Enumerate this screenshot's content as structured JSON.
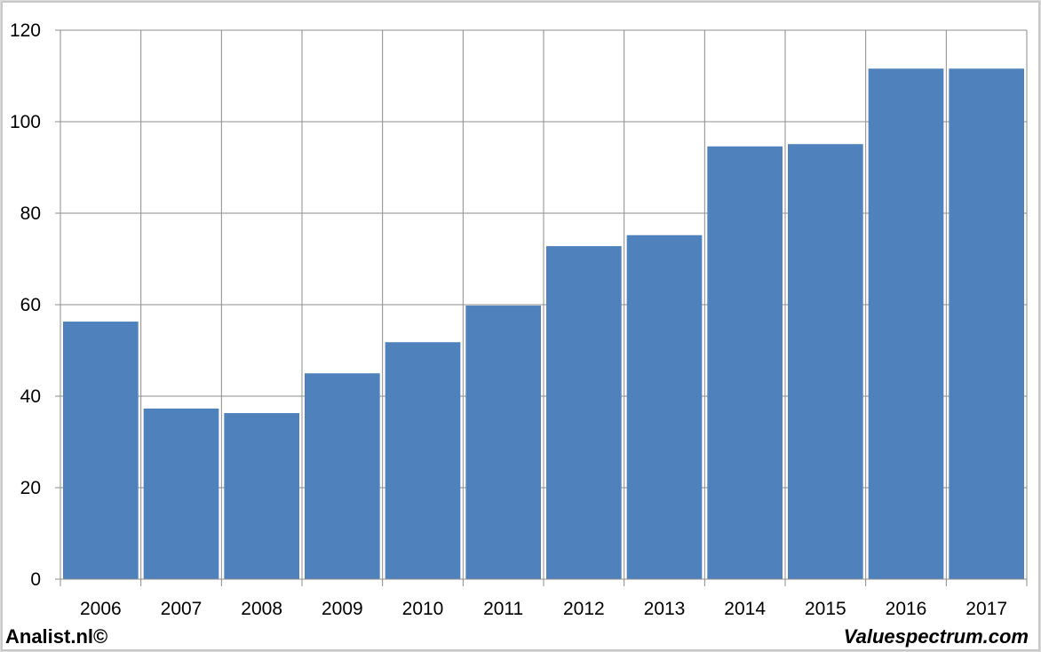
{
  "chart_data": {
    "type": "bar",
    "categories": [
      "2006",
      "2007",
      "2008",
      "2009",
      "2010",
      "2011",
      "2012",
      "2013",
      "2014",
      "2015",
      "2016",
      "2017"
    ],
    "values": [
      56.3,
      37.3,
      36.3,
      45.0,
      51.8,
      59.8,
      72.8,
      75.2,
      94.6,
      95.1,
      111.6,
      111.6
    ],
    "ylim": [
      0,
      120
    ],
    "yticks": [
      0,
      20,
      40,
      60,
      80,
      100,
      120
    ],
    "grid": true,
    "bar_color": "#4f81bd",
    "title": "",
    "xlabel": "",
    "ylabel": ""
  },
  "footer": {
    "left": "Analist.nl©",
    "right": "Valuespectrum.com"
  }
}
